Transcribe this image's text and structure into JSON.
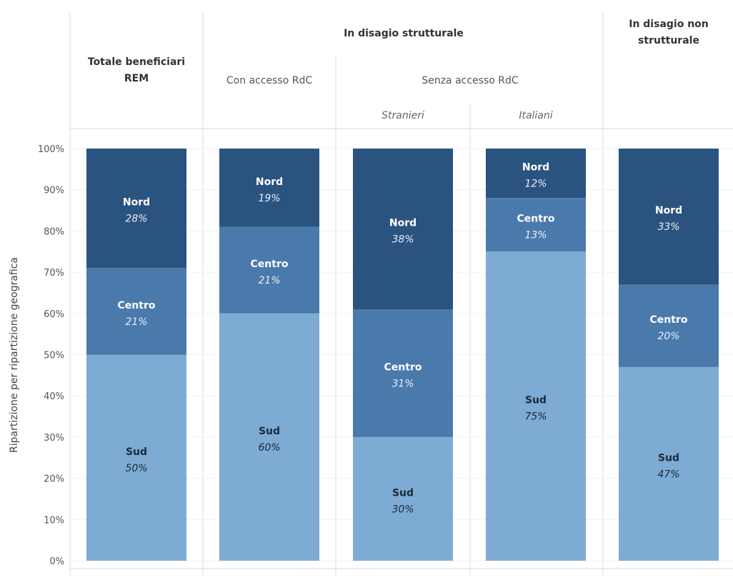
{
  "chart_data": {
    "type": "bar",
    "stacked": true,
    "ylabel": "Ripartizione per ripartizione geografica",
    "ylim": [
      0,
      100
    ],
    "yticks": [
      "0%",
      "10%",
      "20%",
      "30%",
      "40%",
      "50%",
      "60%",
      "70%",
      "80%",
      "90%",
      "100%"
    ],
    "grid": true,
    "header": {
      "group_total": "Totale beneficiari\nREM",
      "group_strutturale": "In disagio strutturale",
      "group_non_strutturale": "In disagio non\nstrutturale",
      "con_accesso": "Con accesso RdC",
      "senza_accesso": "Senza accesso RdC",
      "stranieri": "Stranieri",
      "italiani": "Italiani"
    },
    "categories": [
      "Totale beneficiari REM",
      "Con accesso RdC",
      "Stranieri",
      "Italiani",
      "In disagio non strutturale"
    ],
    "series": [
      {
        "name": "Sud",
        "values": [
          50,
          60,
          30,
          75,
          47
        ],
        "value_labels": [
          "50%",
          "60%",
          "30%",
          "75%",
          "47%"
        ],
        "color": "#7eabd3"
      },
      {
        "name": "Centro",
        "values": [
          21,
          21,
          31,
          13,
          20
        ],
        "value_labels": [
          "21%",
          "21%",
          "31%",
          "13%",
          "20%"
        ],
        "color": "#4a7aab"
      },
      {
        "name": "Nord",
        "values": [
          28,
          19,
          38,
          12,
          33
        ],
        "value_labels": [
          "28%",
          "19%",
          "38%",
          "12%",
          "33%"
        ],
        "color": "#2b5380"
      }
    ],
    "label_colors": {
      "Sud": "#1a2a3a",
      "Centro": "#ffffff",
      "Nord": "#ffffff"
    },
    "value_colors": {
      "Sud": "#1a2a3a",
      "Centro": "#e6eef7",
      "Nord": "#e6eef7"
    }
  }
}
